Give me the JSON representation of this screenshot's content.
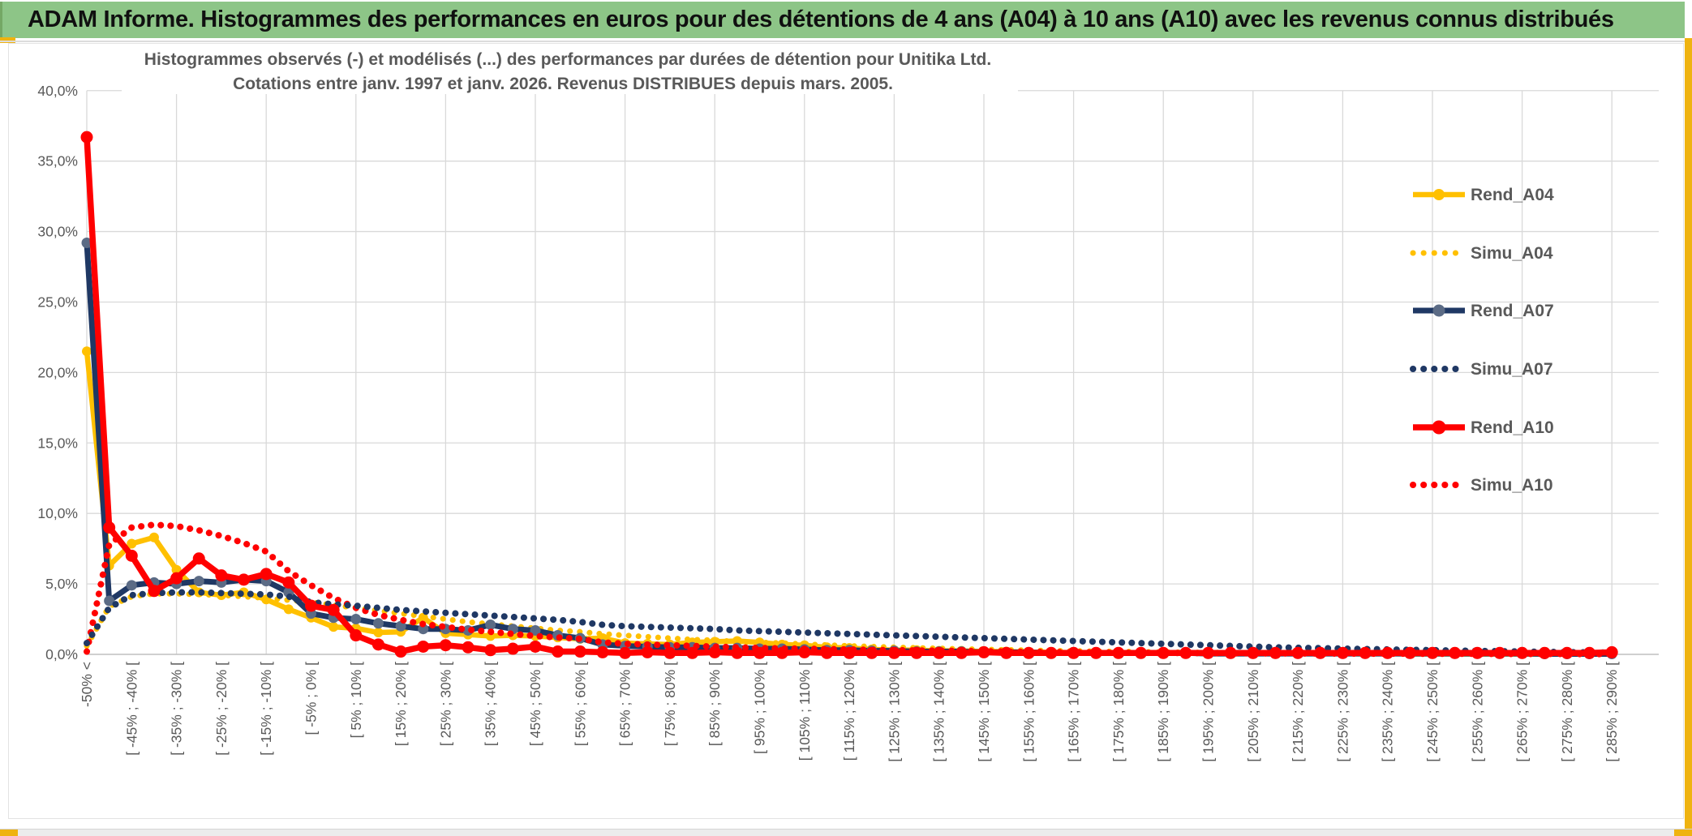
{
  "window": {
    "banner_title": "ADAM Informe. Histogrammes des performances en euros pour des détentions de 4 ans (A04) à 10 ans (A10) avec les revenus connus distribués",
    "banner_color": "#8dc587",
    "accent_color": "#efb310",
    "scrollbar_track_color": "#ececec"
  },
  "chart_data": {
    "type": "line",
    "title": "Histogrammes observés (-) et modélisés (...) des performances par durées de détention pour Unitika Ltd.",
    "subtitle": "Cotations entre janv. 1997 et janv. 2026. Revenus DISTRIBUES depuis mars. 2005.",
    "title_color": "#595959",
    "grid": true,
    "gridline_color": "#d9d9d9",
    "axis_line_color": "#bfbfbf",
    "axis_text_color": "#595959",
    "ylim_percent": [
      0,
      40
    ],
    "y_tick_step_percent": 5,
    "y_tick_labels_top_down": [
      "40,0%",
      "35,0%",
      "30,0%",
      "25,0%",
      "20,0%",
      "15,0%",
      "10,0%",
      "5,0%",
      "0,0%"
    ],
    "bins_total": 69,
    "x_labels_on_odd_bins": true,
    "x_tick_labels": [
      "-50% <",
      "[ -45% ; -40% [",
      "[ -35% ; -30% [",
      "[ -25% ; -20% [",
      "[ -15% ; -10% [",
      "[ -5% ; 0% [",
      "[ 5% ; 10% [",
      "[ 15% ; 20% [",
      "[ 25% ; 30% [",
      "[ 35% ; 40% [",
      "[ 45% ; 50% [",
      "[ 55% ; 60% [",
      "[ 65% ; 70% [",
      "[ 75% ; 80% [",
      "[ 85% ; 90% [",
      "[ 95% ; 100% [",
      "[ 105% ; 110% [",
      "[ 115% ; 120% [",
      "[ 125% ; 130% [",
      "[ 135% ; 140% [",
      "[ 145% ; 150% [",
      "[ 155% ; 160% [",
      "[ 165% ; 170% [",
      "[ 175% ; 180% [",
      "[ 185% ; 190% [",
      "[ 195% ; 200% [",
      "[ 205% ; 210% [",
      "[ 215% ; 220% [",
      "[ 225% ; 230% [",
      "[ 235% ; 240% [",
      "[ 245% ; 250% [",
      "[ 255% ; 260% [",
      "[ 265% ; 270% [",
      "[ 275% ; 280% [",
      "[ 285% ; 290% ["
    ],
    "legend_position": "right-upper",
    "series": [
      {
        "name": "Rend_A04",
        "style": "solid",
        "color": "#FFC000",
        "marker_color": "#FFC000",
        "line_width": 6.5,
        "marker_radius": 6,
        "values": [
          21.5,
          6.3,
          7.85,
          8.3,
          6.0,
          4.4,
          4.2,
          4.4,
          3.9,
          3.2,
          2.6,
          1.95,
          1.85,
          1.55,
          1.6,
          2.6,
          1.5,
          1.4,
          1.3,
          1.35,
          1.3,
          1.2,
          1.1,
          1.15,
          0.8,
          0.75,
          0.7,
          0.85,
          0.9,
          0.95,
          0.85,
          0.7,
          0.65,
          0.5,
          0.45,
          0.35,
          0.3,
          0.3,
          0.25,
          0.25,
          0.2,
          0.2,
          0.15,
          0.15,
          0.12,
          0.1,
          0.1,
          0.1,
          0.08,
          0.1,
          0.05,
          0.05,
          0.08,
          0.05,
          0.05,
          0.05,
          0.05,
          0.03,
          0.05,
          0.03,
          0.03,
          0.03,
          0.02,
          0.03,
          0.02,
          0.02,
          0.02,
          0.02,
          0.02
        ]
      },
      {
        "name": "Simu_A04",
        "style": "dotted",
        "color": "#FFC000",
        "line_width": 7,
        "values": [
          0.6,
          3.4,
          4.1,
          4.3,
          4.3,
          4.25,
          4.2,
          4.1,
          4.0,
          3.85,
          3.7,
          3.5,
          3.3,
          3.1,
          2.9,
          2.7,
          2.5,
          2.3,
          2.15,
          2.0,
          1.85,
          1.7,
          1.6,
          1.45,
          1.35,
          1.25,
          1.15,
          1.05,
          1.0,
          0.9,
          0.85,
          0.8,
          0.72,
          0.66,
          0.6,
          0.55,
          0.5,
          0.46,
          0.42,
          0.38,
          0.35,
          0.32,
          0.29,
          0.26,
          0.24,
          0.22,
          0.2,
          0.18,
          0.16,
          0.15,
          0.13,
          0.12,
          0.11,
          0.1,
          0.09,
          0.08,
          0.07,
          0.07,
          0.06,
          0.05,
          0.05,
          0.04,
          0.04,
          0.03,
          0.03,
          0.03,
          0.02,
          0.02,
          0.02
        ]
      },
      {
        "name": "Rend_A07",
        "style": "solid",
        "color": "#1F3864",
        "marker_color": "#5B6B85",
        "line_width": 7,
        "marker_radius": 6.5,
        "values": [
          29.2,
          3.8,
          4.9,
          5.1,
          5.0,
          5.2,
          5.1,
          5.3,
          5.2,
          4.4,
          2.9,
          2.6,
          2.5,
          2.2,
          2.0,
          1.8,
          1.8,
          1.7,
          2.1,
          1.8,
          1.7,
          1.35,
          1.15,
          0.7,
          0.6,
          0.55,
          0.5,
          0.5,
          0.45,
          0.45,
          0.4,
          0.4,
          0.35,
          0.3,
          0.3,
          0.25,
          0.25,
          0.2,
          0.2,
          0.2,
          0.15,
          0.15,
          0.15,
          0.1,
          0.1,
          0.1,
          0.1,
          0.1,
          0.1,
          0.1,
          0.05,
          0.05,
          0.05,
          0.05,
          0.05,
          0.05,
          0.05,
          0.05,
          0.05,
          0.05,
          0.05,
          0.05,
          0.05,
          0.05,
          0.05,
          0.03,
          0.03,
          0.03,
          0.03
        ]
      },
      {
        "name": "Simu_A07",
        "style": "dotted",
        "color": "#1F3864",
        "line_width": 8,
        "values": [
          0.8,
          3.3,
          4.2,
          4.35,
          4.4,
          4.4,
          4.35,
          4.3,
          4.25,
          4.1,
          3.7,
          3.55,
          3.45,
          3.3,
          3.15,
          3.05,
          2.95,
          2.85,
          2.75,
          2.65,
          2.55,
          2.45,
          2.3,
          2.1,
          2.0,
          1.95,
          1.9,
          1.85,
          1.8,
          1.7,
          1.65,
          1.6,
          1.55,
          1.5,
          1.45,
          1.4,
          1.35,
          1.3,
          1.25,
          1.2,
          1.15,
          1.1,
          1.05,
          1.0,
          0.95,
          0.9,
          0.85,
          0.8,
          0.75,
          0.7,
          0.65,
          0.6,
          0.55,
          0.5,
          0.47,
          0.44,
          0.41,
          0.38,
          0.35,
          0.32,
          0.3,
          0.27,
          0.25,
          0.22,
          0.2,
          0.18,
          0.16,
          0.14,
          0.12
        ]
      },
      {
        "name": "Rend_A10",
        "style": "solid",
        "color": "#FF0000",
        "marker_color": "#FF0000",
        "line_width": 7.5,
        "marker_radius": 7.5,
        "values": [
          36.7,
          9.0,
          7.0,
          4.5,
          5.4,
          6.8,
          5.6,
          5.3,
          5.7,
          5.1,
          3.45,
          3.15,
          1.35,
          0.7,
          0.2,
          0.55,
          0.65,
          0.5,
          0.3,
          0.4,
          0.55,
          0.2,
          0.2,
          0.15,
          0.1,
          0.15,
          0.1,
          0.1,
          0.15,
          0.1,
          0.1,
          0.1,
          0.15,
          0.1,
          0.1,
          0.1,
          0.1,
          0.1,
          0.1,
          0.1,
          0.15,
          0.1,
          0.1,
          0.1,
          0.1,
          0.1,
          0.1,
          0.1,
          0.1,
          0.1,
          0.1,
          0.1,
          0.1,
          0.1,
          0.1,
          0.1,
          0.1,
          0.1,
          0.1,
          0.1,
          0.1,
          0.1,
          0.1,
          0.1,
          0.1,
          0.1,
          0.1,
          0.1,
          0.15
        ]
      },
      {
        "name": "Simu_A10",
        "style": "dotted",
        "color": "#FF0000",
        "line_width": 8,
        "values": [
          0.2,
          7.8,
          9.0,
          9.2,
          9.1,
          8.8,
          8.4,
          7.9,
          7.3,
          5.9,
          4.9,
          4.0,
          3.3,
          2.8,
          2.45,
          2.15,
          1.95,
          1.75,
          1.6,
          1.45,
          1.3,
          1.2,
          1.1,
          0.85,
          0.75,
          0.7,
          0.65,
          0.6,
          0.55,
          0.5,
          0.45,
          0.42,
          0.4,
          0.37,
          0.35,
          0.32,
          0.3,
          0.28,
          0.26,
          0.25,
          0.22,
          0.2,
          0.18,
          0.16,
          0.15,
          0.14,
          0.12,
          0.11,
          0.1,
          0.1,
          0.09,
          0.08,
          0.08,
          0.07,
          0.07,
          0.06,
          0.06,
          0.05,
          0.05,
          0.05,
          0.04,
          0.04,
          0.04,
          0.03,
          0.03,
          0.03,
          0.03,
          0.02,
          0.02
        ]
      }
    ]
  }
}
